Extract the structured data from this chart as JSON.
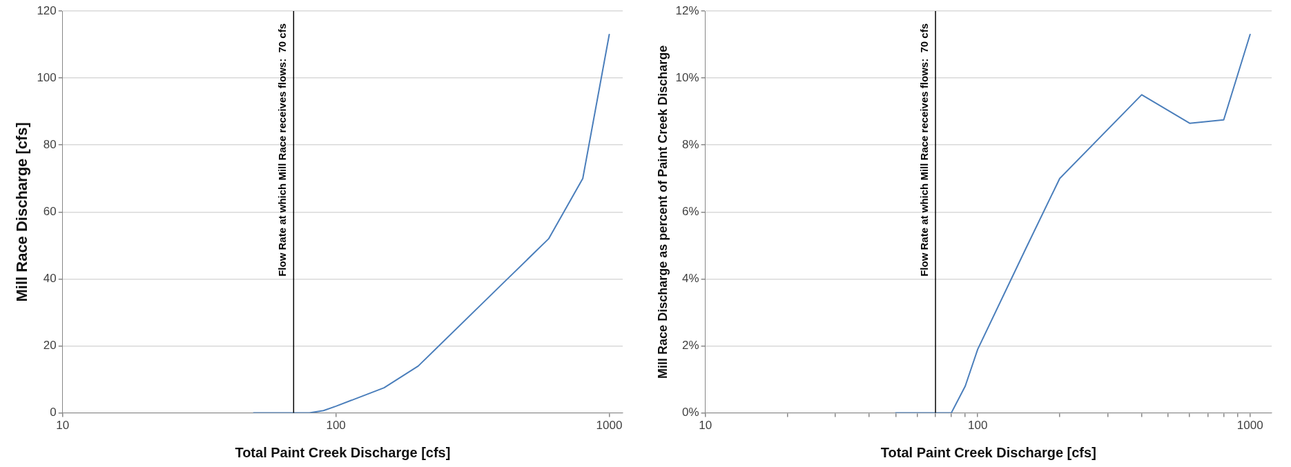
{
  "chart_data": [
    {
      "type": "line",
      "xlabel": "Total Paint Creek Discharge [cfs]",
      "ylabel": "Mill Race Discharge [cfs]",
      "log": "x",
      "grid": "y",
      "legend": false,
      "marker": "none",
      "line_style": "solid",
      "xlim": [
        10,
        1120
      ],
      "xticks": [
        10,
        100,
        1000
      ],
      "ylim": [
        0,
        120
      ],
      "yticks": [
        0,
        20,
        40,
        60,
        80,
        100,
        120
      ],
      "x": [
        50,
        70,
        80,
        90,
        100,
        150,
        200,
        400,
        600,
        800,
        1000
      ],
      "series": [
        {
          "color": "#4a7ebb",
          "values": [
            0,
            0,
            0,
            0.7,
            2,
            7.5,
            14,
            38,
            52,
            70,
            113
          ]
        }
      ],
      "ref_lines": [
        {
          "axis": "x",
          "value": 70,
          "label": "Flow Rate at which Mill Race receives flows:  70 cfs",
          "color": "#000000"
        }
      ]
    },
    {
      "type": "line",
      "xlabel": "Total Paint Creek Discharge [cfs]",
      "ylabel": "Mill Race Discharge as percent of Paint Creek Discharge",
      "log": "x",
      "grid": "y",
      "legend": false,
      "marker": "none",
      "line_style": "solid",
      "xlim": [
        10,
        1200
      ],
      "xticks": [
        10,
        {
          "value": 20,
          "label": null
        },
        {
          "value": 30,
          "label": null
        },
        {
          "value": 40,
          "label": null
        },
        {
          "value": 50,
          "label": null
        },
        {
          "value": 60,
          "label": null
        },
        {
          "value": 70,
          "label": null
        },
        {
          "value": 80,
          "label": null
        },
        {
          "value": 90,
          "label": null
        },
        100,
        {
          "value": 200,
          "label": null
        },
        {
          "value": 300,
          "label": null
        },
        {
          "value": 400,
          "label": null
        },
        {
          "value": 500,
          "label": null
        },
        {
          "value": 600,
          "label": null
        },
        {
          "value": 700,
          "label": null
        },
        {
          "value": 800,
          "label": null
        },
        {
          "value": 900,
          "label": null
        },
        1000
      ],
      "ylim": [
        0,
        12
      ],
      "yticks": [
        {
          "value": 0,
          "label": "0%"
        },
        {
          "value": 2,
          "label": "2%"
        },
        {
          "value": 4,
          "label": "4%"
        },
        {
          "value": 6,
          "label": "6%"
        },
        {
          "value": 8,
          "label": "8%"
        },
        {
          "value": 10,
          "label": "10%"
        },
        {
          "value": 12,
          "label": "12%"
        }
      ],
      "x": [
        50,
        70,
        80,
        90,
        100,
        150,
        200,
        400,
        600,
        800,
        1000
      ],
      "series": [
        {
          "color": "#4a7ebb",
          "values": [
            0,
            0,
            0,
            0.8,
            1.9,
            4.9,
            7,
            9.5,
            8.65,
            8.75,
            11.3
          ]
        }
      ],
      "ref_lines": [
        {
          "axis": "x",
          "value": 70,
          "label": "Flow Rate at which Mill Race receives flows:  70 cfs",
          "color": "#000000"
        }
      ]
    }
  ]
}
